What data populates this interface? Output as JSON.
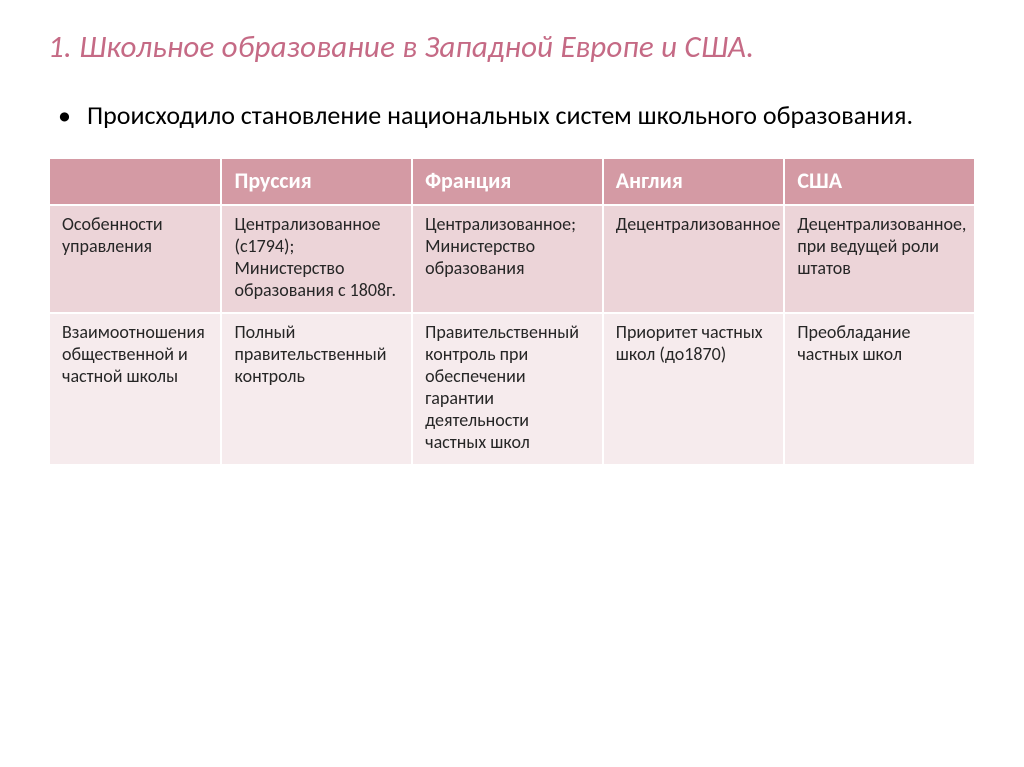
{
  "title": {
    "text": "1. Школьное образование в Западной Европе и  США.",
    "color": "#c56a85"
  },
  "lead": "Происходило становление национальных систем школьного образования.",
  "table": {
    "header_bg": "#d49aa4",
    "header_fg": "#ffffff",
    "row1_bg": "#ecd4d8",
    "row2_bg": "#f6ebed",
    "cell_fg": "#262626",
    "columns": [
      "",
      "Пруссия",
      "Франция",
      "Англия",
      "США"
    ],
    "rows": [
      {
        "label": "Особенности управления",
        "cells": [
          "Централизованное (с1794); Министерство образования с 1808г.",
          "Централизованное; Министерство образования",
          "Децентрализованное",
          "Децентрализованное, при ведущей роли штатов"
        ]
      },
      {
        "label": "Взаимоотношения общественной и частной школы",
        "cells": [
          "Полный правительственный контроль",
          "Правительственный контроль при обеспечении гарантии деятельности частных школ",
          "Приоритет частных школ (до1870)",
          "Преобладание частных школ"
        ]
      }
    ]
  }
}
